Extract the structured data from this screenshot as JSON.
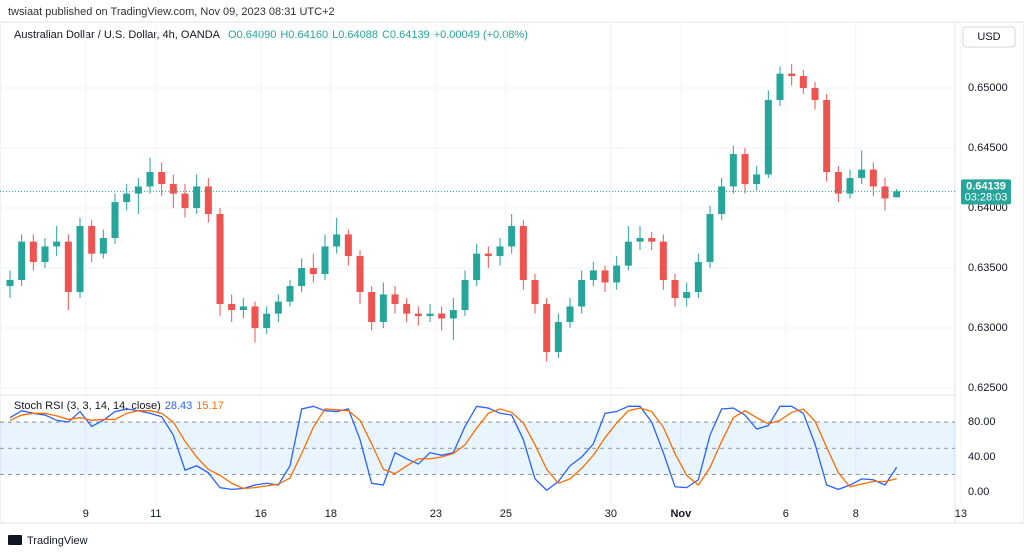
{
  "header": {
    "publisher": "twsiaat published on TradingView.com, Nov 09, 2023 08:31 UTC+2",
    "symbol": "Australian Dollar / U.S. Dollar, 4h, OANDA",
    "ohlc": [
      "O0.64090",
      "H0.64160",
      "L0.64088",
      "C0.64139"
    ],
    "change": "+0.00049 (+0.08%)",
    "currency": "USD",
    "brand": "TradingView"
  },
  "chart_data": [
    {
      "type": "candlestick",
      "up_color": "#26a69a",
      "down_color": "#ef5350",
      "countdown": "03:28:03",
      "grid": true,
      "xlim": [
        0,
        81
      ],
      "xticks": [
        {
          "value": 6.5,
          "label": "9"
        },
        {
          "value": 12.5,
          "label": "11"
        },
        {
          "value": 21.5,
          "label": "16"
        },
        {
          "value": 27.5,
          "label": "18"
        },
        {
          "value": 36.5,
          "label": "23"
        },
        {
          "value": 42.5,
          "label": "25"
        },
        {
          "value": 51.5,
          "label": "30"
        },
        {
          "value": 57.5,
          "label": "Nov"
        },
        {
          "value": 66.5,
          "label": "6"
        },
        {
          "value": 72.5,
          "label": "8"
        },
        {
          "value": 81.5,
          "label": "13"
        }
      ],
      "ylim": [
        0.62442,
        0.65567
      ],
      "yticks": [
        {
          "value": 0.625,
          "label": "0.62500"
        },
        {
          "value": 0.63,
          "label": "0.63000"
        },
        {
          "value": 0.635,
          "label": "0.63500"
        },
        {
          "value": 0.64,
          "label": "0.64000"
        },
        {
          "value": 0.645,
          "label": "0.64500"
        },
        {
          "value": 0.65,
          "label": "0.65000"
        }
      ],
      "candles": [
        [
          0.6335,
          0.6348,
          0.6325,
          0.634
        ],
        [
          0.634,
          0.6378,
          0.6335,
          0.6372
        ],
        [
          0.6372,
          0.6378,
          0.6348,
          0.6355
        ],
        [
          0.6355,
          0.6375,
          0.635,
          0.6368
        ],
        [
          0.6368,
          0.6385,
          0.636,
          0.6372
        ],
        [
          0.6372,
          0.6378,
          0.6315,
          0.633
        ],
        [
          0.633,
          0.6392,
          0.6325,
          0.6385
        ],
        [
          0.6385,
          0.639,
          0.6355,
          0.6362
        ],
        [
          0.6362,
          0.6382,
          0.6358,
          0.6375
        ],
        [
          0.6375,
          0.6412,
          0.637,
          0.6405
        ],
        [
          0.6405,
          0.642,
          0.6398,
          0.6412
        ],
        [
          0.6412,
          0.6425,
          0.6395,
          0.6418
        ],
        [
          0.6418,
          0.6442,
          0.6412,
          0.643
        ],
        [
          0.643,
          0.6438,
          0.641,
          0.642
        ],
        [
          0.642,
          0.6428,
          0.64,
          0.6412
        ],
        [
          0.6412,
          0.642,
          0.6392,
          0.64
        ],
        [
          0.64,
          0.6428,
          0.6395,
          0.6418
        ],
        [
          0.6418,
          0.6425,
          0.6388,
          0.6395
        ],
        [
          0.6395,
          0.64,
          0.631,
          0.632
        ],
        [
          0.632,
          0.6328,
          0.6305,
          0.6315
        ],
        [
          0.6315,
          0.6325,
          0.6308,
          0.6318
        ],
        [
          0.6318,
          0.6322,
          0.6288,
          0.63
        ],
        [
          0.63,
          0.6318,
          0.6295,
          0.6312
        ],
        [
          0.6312,
          0.6328,
          0.6305,
          0.6322
        ],
        [
          0.6322,
          0.634,
          0.6318,
          0.6335
        ],
        [
          0.6335,
          0.6358,
          0.633,
          0.635
        ],
        [
          0.635,
          0.6362,
          0.6338,
          0.6345
        ],
        [
          0.6345,
          0.6378,
          0.634,
          0.6368
        ],
        [
          0.6368,
          0.6392,
          0.6362,
          0.6378
        ],
        [
          0.6378,
          0.6382,
          0.6352,
          0.636
        ],
        [
          0.636,
          0.6365,
          0.632,
          0.633
        ],
        [
          0.633,
          0.6335,
          0.6298,
          0.6305
        ],
        [
          0.6305,
          0.6338,
          0.63,
          0.6328
        ],
        [
          0.6328,
          0.6335,
          0.6312,
          0.632
        ],
        [
          0.632,
          0.6325,
          0.6305,
          0.6312
        ],
        [
          0.6312,
          0.6318,
          0.6302,
          0.631
        ],
        [
          0.631,
          0.632,
          0.6305,
          0.6312
        ],
        [
          0.6312,
          0.6318,
          0.6298,
          0.6308
        ],
        [
          0.6308,
          0.6325,
          0.629,
          0.6315
        ],
        [
          0.6315,
          0.6348,
          0.631,
          0.634
        ],
        [
          0.634,
          0.637,
          0.6335,
          0.6362
        ],
        [
          0.6362,
          0.6368,
          0.635,
          0.636
        ],
        [
          0.636,
          0.6375,
          0.6352,
          0.6368
        ],
        [
          0.6368,
          0.6395,
          0.6362,
          0.6385
        ],
        [
          0.6385,
          0.639,
          0.6332,
          0.634
        ],
        [
          0.634,
          0.6345,
          0.6312,
          0.632
        ],
        [
          0.632,
          0.6325,
          0.6272,
          0.628
        ],
        [
          0.628,
          0.6312,
          0.6275,
          0.6305
        ],
        [
          0.6305,
          0.6325,
          0.63,
          0.6318
        ],
        [
          0.6318,
          0.6348,
          0.6312,
          0.634
        ],
        [
          0.634,
          0.6355,
          0.6335,
          0.6348
        ],
        [
          0.6348,
          0.6352,
          0.633,
          0.6338
        ],
        [
          0.6338,
          0.636,
          0.6332,
          0.6352
        ],
        [
          0.6352,
          0.6385,
          0.6348,
          0.6372
        ],
        [
          0.6372,
          0.6385,
          0.6365,
          0.6375
        ],
        [
          0.6375,
          0.638,
          0.6365,
          0.6372
        ],
        [
          0.6372,
          0.6378,
          0.6332,
          0.634
        ],
        [
          0.634,
          0.6345,
          0.6318,
          0.6325
        ],
        [
          0.6325,
          0.6338,
          0.6318,
          0.633
        ],
        [
          0.633,
          0.6362,
          0.6325,
          0.6355
        ],
        [
          0.6355,
          0.6402,
          0.635,
          0.6395
        ],
        [
          0.6395,
          0.6425,
          0.639,
          0.6418
        ],
        [
          0.6418,
          0.6452,
          0.6412,
          0.6445
        ],
        [
          0.6445,
          0.645,
          0.6412,
          0.642
        ],
        [
          0.642,
          0.6435,
          0.6415,
          0.6428
        ],
        [
          0.6428,
          0.6498,
          0.6425,
          0.649
        ],
        [
          0.649,
          0.6518,
          0.6485,
          0.6512
        ],
        [
          0.6512,
          0.652,
          0.6502,
          0.651
        ],
        [
          0.651,
          0.6515,
          0.6495,
          0.65
        ],
        [
          0.65,
          0.6505,
          0.6482,
          0.649
        ],
        [
          0.649,
          0.6495,
          0.6422,
          0.643
        ],
        [
          0.643,
          0.6435,
          0.6405,
          0.6412
        ],
        [
          0.6412,
          0.6432,
          0.6408,
          0.6425
        ],
        [
          0.6425,
          0.6448,
          0.642,
          0.6432
        ],
        [
          0.6432,
          0.6438,
          0.641,
          0.6418
        ],
        [
          0.6418,
          0.6425,
          0.6398,
          0.6408
        ],
        [
          0.6409,
          0.6416,
          0.64088,
          0.64139
        ]
      ]
    },
    {
      "type": "line",
      "title": "Stoch RSI (3, 3, 14, 14, close)",
      "ylim": [
        -32,
        107.5
      ],
      "yticks": [
        {
          "value": 0,
          "label": "0.00"
        },
        {
          "value": 40,
          "label": "40.00"
        },
        {
          "value": 80,
          "label": "80.00"
        }
      ],
      "bands": [
        20,
        50,
        80
      ],
      "series": [
        {
          "color": "#2962ff",
          "values": [
            85,
            93,
            90,
            88,
            82,
            80,
            92,
            75,
            82,
            92,
            95,
            93,
            90,
            86,
            65,
            25,
            30,
            22,
            5,
            3,
            4,
            8,
            10,
            8,
            30,
            95,
            98,
            93,
            92,
            95,
            60,
            10,
            8,
            45,
            38,
            32,
            45,
            42,
            45,
            75,
            98,
            96,
            90,
            88,
            60,
            15,
            2,
            12,
            30,
            40,
            55,
            90,
            92,
            98,
            98,
            80,
            45,
            6,
            5,
            14,
            65,
            95,
            96,
            88,
            72,
            76,
            98,
            98,
            90,
            55,
            8,
            3,
            8,
            15,
            14,
            8,
            28.43
          ]
        },
        {
          "color": "#ff6d00",
          "values": [
            82,
            88,
            90,
            90,
            87,
            83,
            85,
            82,
            83,
            83,
            90,
            93,
            93,
            90,
            80,
            58,
            40,
            26,
            19,
            10,
            4,
            5,
            7,
            9,
            16,
            44,
            74,
            95,
            94,
            93,
            82,
            55,
            26,
            21,
            30,
            38,
            38,
            40,
            44,
            54,
            73,
            90,
            95,
            91,
            79,
            54,
            26,
            10,
            15,
            27,
            42,
            62,
            79,
            93,
            96,
            92,
            74,
            44,
            19,
            8,
            28,
            58,
            85,
            93,
            85,
            78,
            82,
            91,
            95,
            81,
            51,
            22,
            6,
            9,
            12,
            12,
            15.17
          ]
        }
      ]
    }
  ]
}
